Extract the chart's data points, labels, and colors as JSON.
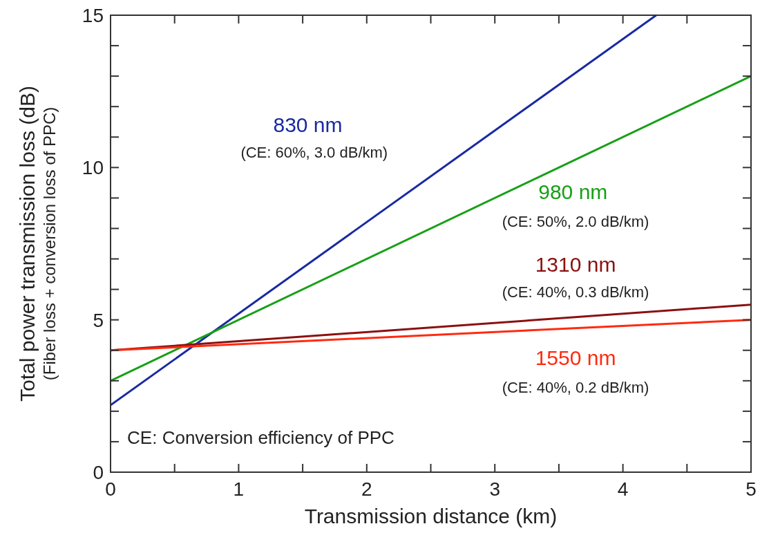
{
  "chart_data": {
    "type": "line",
    "xlabel": "Transmission distance (km)",
    "ylabel": "Total power transmission loss (dB)\n(Fiber loss + conversion loss of PPC)",
    "xlim": [
      0,
      5
    ],
    "ylim": [
      0,
      15
    ],
    "xticks": [
      0,
      {
        "value": 0.5,
        "label": null
      },
      1,
      {
        "value": 1.5,
        "label": null
      },
      2,
      {
        "value": 2.5,
        "label": null
      },
      3,
      {
        "value": 3.5,
        "label": null
      },
      4,
      {
        "value": 4.5,
        "label": null
      },
      5
    ],
    "yticks": [
      0,
      {
        "value": 1,
        "label": null
      },
      {
        "value": 2,
        "label": null
      },
      {
        "value": 3,
        "label": null
      },
      {
        "value": 4,
        "label": null
      },
      5,
      {
        "value": 6,
        "label": null
      },
      {
        "value": 7,
        "label": null
      },
      {
        "value": 8,
        "label": null
      },
      {
        "value": 9,
        "label": null
      },
      10,
      {
        "value": 11,
        "label": null
      },
      {
        "value": 12,
        "label": null
      },
      {
        "value": 13,
        "label": null
      },
      {
        "value": 14,
        "label": null
      },
      15
    ],
    "grid": false,
    "line_style": "solid",
    "series": [
      {
        "name": "830 nm",
        "color": "#1a2aa0",
        "x": [
          0,
          4.26
        ],
        "values": [
          2.2,
          15
        ]
      },
      {
        "name": "980 nm",
        "color": "#16a016",
        "x": [
          0,
          5
        ],
        "values": [
          3.0,
          13.0
        ]
      },
      {
        "name": "1310 nm",
        "color": "#8b1010",
        "x": [
          0,
          5
        ],
        "values": [
          4.0,
          5.5
        ]
      },
      {
        "name": "1550 nm",
        "color": "#ff2a10",
        "x": [
          0,
          5
        ],
        "values": [
          4.0,
          5.0
        ]
      }
    ],
    "annotations": [
      "(CE: 60%, 3.0 dB/km)",
      "(CE: 50%, 2.0 dB/km)",
      "(CE: 40%, 0.3 dB/km)",
      "(CE: 40%, 0.2 dB/km)",
      "CE: Conversion efficiency of PPC"
    ]
  }
}
